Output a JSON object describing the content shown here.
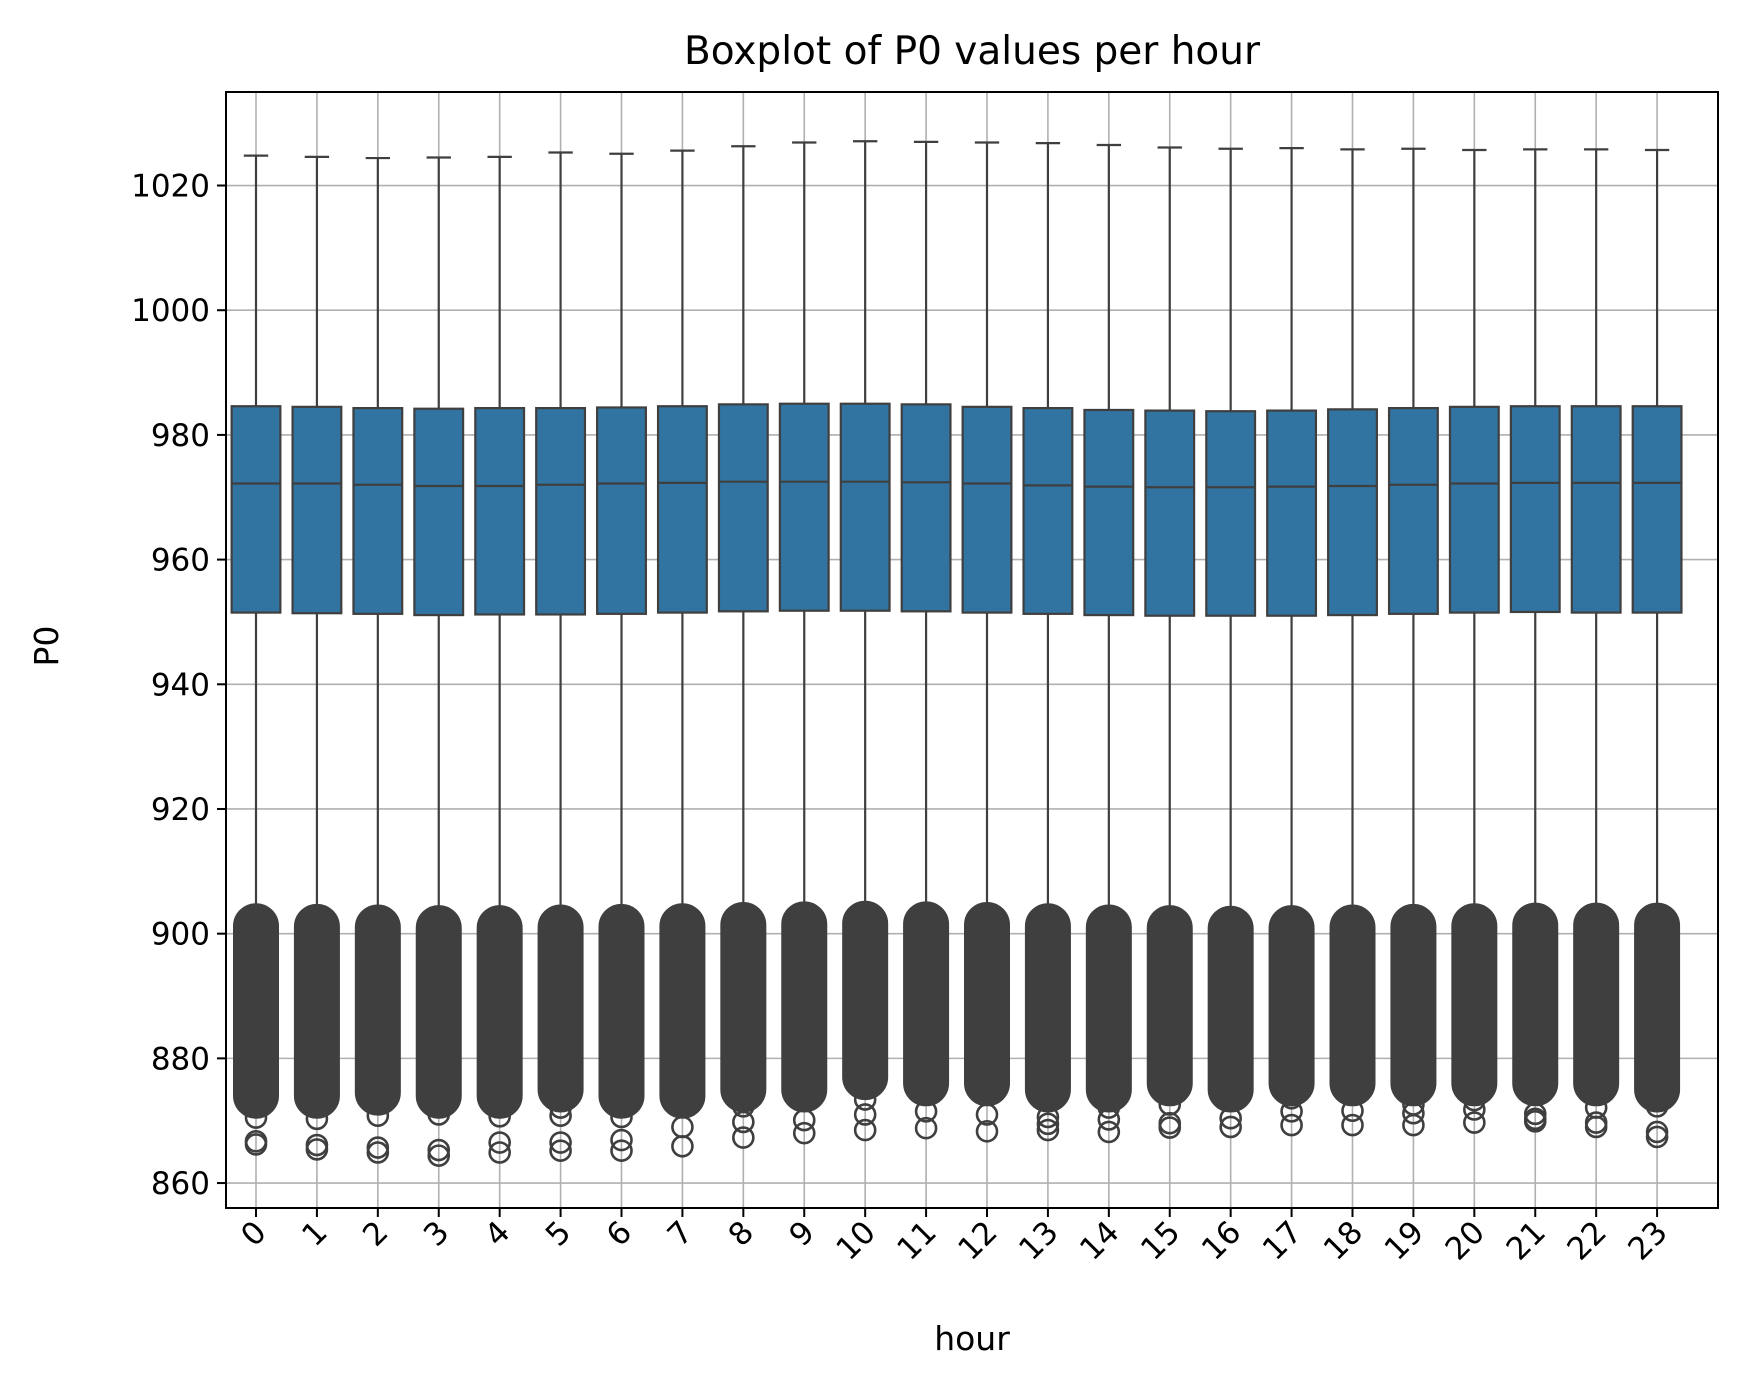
{
  "chart_data": {
    "type": "boxplot",
    "title": "Boxplot of P0 values per hour",
    "xlabel": "hour",
    "ylabel": "P0",
    "ylim": [
      856,
      1035
    ],
    "yticks": [
      860,
      880,
      900,
      920,
      940,
      960,
      980,
      1000,
      1020
    ],
    "grid": true,
    "box_color": "#3274a1",
    "line_color": "#3f3f3f",
    "categories": [
      "0",
      "1",
      "2",
      "3",
      "4",
      "5",
      "6",
      "7",
      "8",
      "9",
      "10",
      "11",
      "12",
      "13",
      "14",
      "15",
      "16",
      "17",
      "18",
      "19",
      "20",
      "21",
      "22",
      "23"
    ],
    "q1": [
      951.5,
      951.4,
      951.3,
      951.1,
      951.2,
      951.2,
      951.3,
      951.5,
      951.7,
      951.8,
      951.8,
      951.7,
      951.5,
      951.3,
      951.1,
      951.0,
      951.0,
      951.0,
      951.1,
      951.3,
      951.5,
      951.6,
      951.5,
      951.5
    ],
    "median": [
      972.2,
      972.2,
      972.0,
      971.8,
      971.8,
      972.0,
      972.2,
      972.3,
      972.5,
      972.5,
      972.5,
      972.4,
      972.2,
      971.9,
      971.7,
      971.6,
      971.6,
      971.7,
      971.8,
      972.0,
      972.2,
      972.3,
      972.3,
      972.3
    ],
    "q3": [
      984.6,
      984.5,
      984.3,
      984.2,
      984.3,
      984.3,
      984.4,
      984.6,
      984.9,
      985.0,
      985.0,
      984.9,
      984.5,
      984.3,
      984.0,
      983.9,
      983.8,
      983.9,
      984.1,
      984.3,
      984.5,
      984.6,
      984.6,
      984.6
    ],
    "whisker_high": [
      1024.8,
      1024.6,
      1024.4,
      1024.5,
      1024.6,
      1025.3,
      1025.1,
      1025.6,
      1026.3,
      1026.9,
      1027.1,
      1027.0,
      1026.9,
      1026.8,
      1026.5,
      1026.1,
      1025.9,
      1026.0,
      1025.8,
      1025.9,
      1025.7,
      1025.8,
      1025.8,
      1025.7
    ],
    "whisker_low": [
      901.2,
      901.1,
      901.0,
      900.9,
      900.9,
      901.0,
      901.1,
      901.2,
      901.4,
      901.5,
      901.6,
      901.5,
      901.4,
      901.2,
      901.0,
      900.9,
      900.8,
      900.9,
      901.0,
      901.1,
      901.2,
      901.3,
      901.3,
      901.3
    ],
    "outlier_dense_min": [
      874.0,
      874.0,
      874.5,
      874.0,
      874.0,
      875.0,
      874.0,
      874.0,
      875.0,
      875.0,
      877.0,
      876.0,
      876.0,
      875.0,
      875.0,
      876.0,
      875.0,
      876.0,
      876.0,
      876.0,
      876.0,
      876.0,
      876.0,
      875.0
    ],
    "outliers": [
      [
        870.5,
        866.7,
        866.2
      ],
      [
        870.3,
        866.1,
        865.4
      ],
      [
        870.8,
        865.7,
        864.9
      ],
      [
        871.0,
        865.3,
        864.4
      ],
      [
        870.7,
        866.5,
        864.9
      ],
      [
        872.1,
        870.8,
        866.5,
        865.2
      ],
      [
        873.6,
        870.6,
        866.9,
        865.2
      ],
      [
        872.6,
        869.0,
        865.9
      ],
      [
        872.3,
        869.8,
        867.3
      ],
      [
        873.3,
        870.1,
        868.0
      ],
      [
        873.4,
        871.0,
        868.5
      ],
      [
        874.5,
        871.5,
        868.8
      ],
      [
        875.0,
        871.0,
        868.3
      ],
      [
        873.3,
        870.6,
        869.5,
        868.5
      ],
      [
        872.1,
        870.2,
        868.2
      ],
      [
        872.6,
        869.6,
        868.9
      ],
      [
        873.3,
        870.4,
        869.0
      ],
      [
        873.6,
        871.5,
        869.3
      ],
      [
        874.5,
        871.6,
        869.3
      ],
      [
        872.6,
        871.2,
        869.3
      ],
      [
        873.3,
        871.8,
        869.7
      ],
      [
        871.1,
        870.3,
        869.9
      ],
      [
        874.5,
        872.1,
        869.7,
        869.0
      ],
      [
        874.6,
        872.3,
        868.2,
        867.4
      ]
    ]
  }
}
